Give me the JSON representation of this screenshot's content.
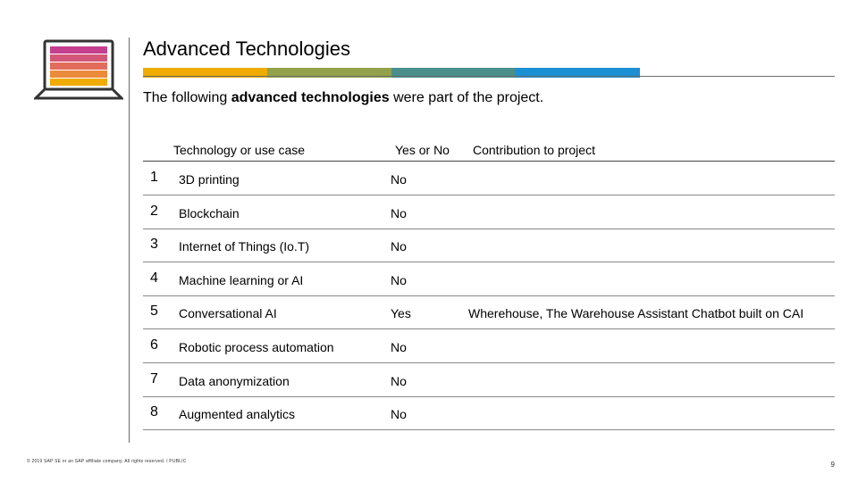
{
  "title": "Advanced Technologies",
  "subtitle": {
    "before": "The following ",
    "bold": "advanced technologies",
    "after": " were part of the project."
  },
  "colors": {
    "bar": [
      "#f0ab00",
      "#93a24a",
      "#4a8f8c",
      "#1a8fd4"
    ],
    "laptop_stripes": [
      "#c53f8f",
      "#d4577a",
      "#e26d5c",
      "#eb8a3a",
      "#f0ab00"
    ]
  },
  "table": {
    "headers": [
      "Technology or use case",
      "Yes or No",
      "Contribution to project"
    ],
    "rows": [
      {
        "num": "1",
        "tech": "3D printing",
        "yn": "No",
        "contrib": ""
      },
      {
        "num": "2",
        "tech": "Blockchain",
        "yn": "No",
        "contrib": ""
      },
      {
        "num": "3",
        "tech": "Internet of Things (Io.T)",
        "yn": "No",
        "contrib": ""
      },
      {
        "num": "4",
        "tech": "Machine learning or AI",
        "yn": "No",
        "contrib": ""
      },
      {
        "num": "5",
        "tech": "Conversational AI",
        "yn": "Yes",
        "contrib": "Wherehouse, The Warehouse Assistant Chatbot built on CAI"
      },
      {
        "num": "6",
        "tech": "Robotic process automation",
        "yn": "No",
        "contrib": ""
      },
      {
        "num": "7",
        "tech": "Data anonymization",
        "yn": "No",
        "contrib": ""
      },
      {
        "num": "8",
        "tech": "Augmented analytics",
        "yn": "No",
        "contrib": ""
      }
    ]
  },
  "footer": "© 2019 SAP SE or an SAP affiliate company. All rights reserved. ǀ PUBLIC",
  "page_number": "9"
}
